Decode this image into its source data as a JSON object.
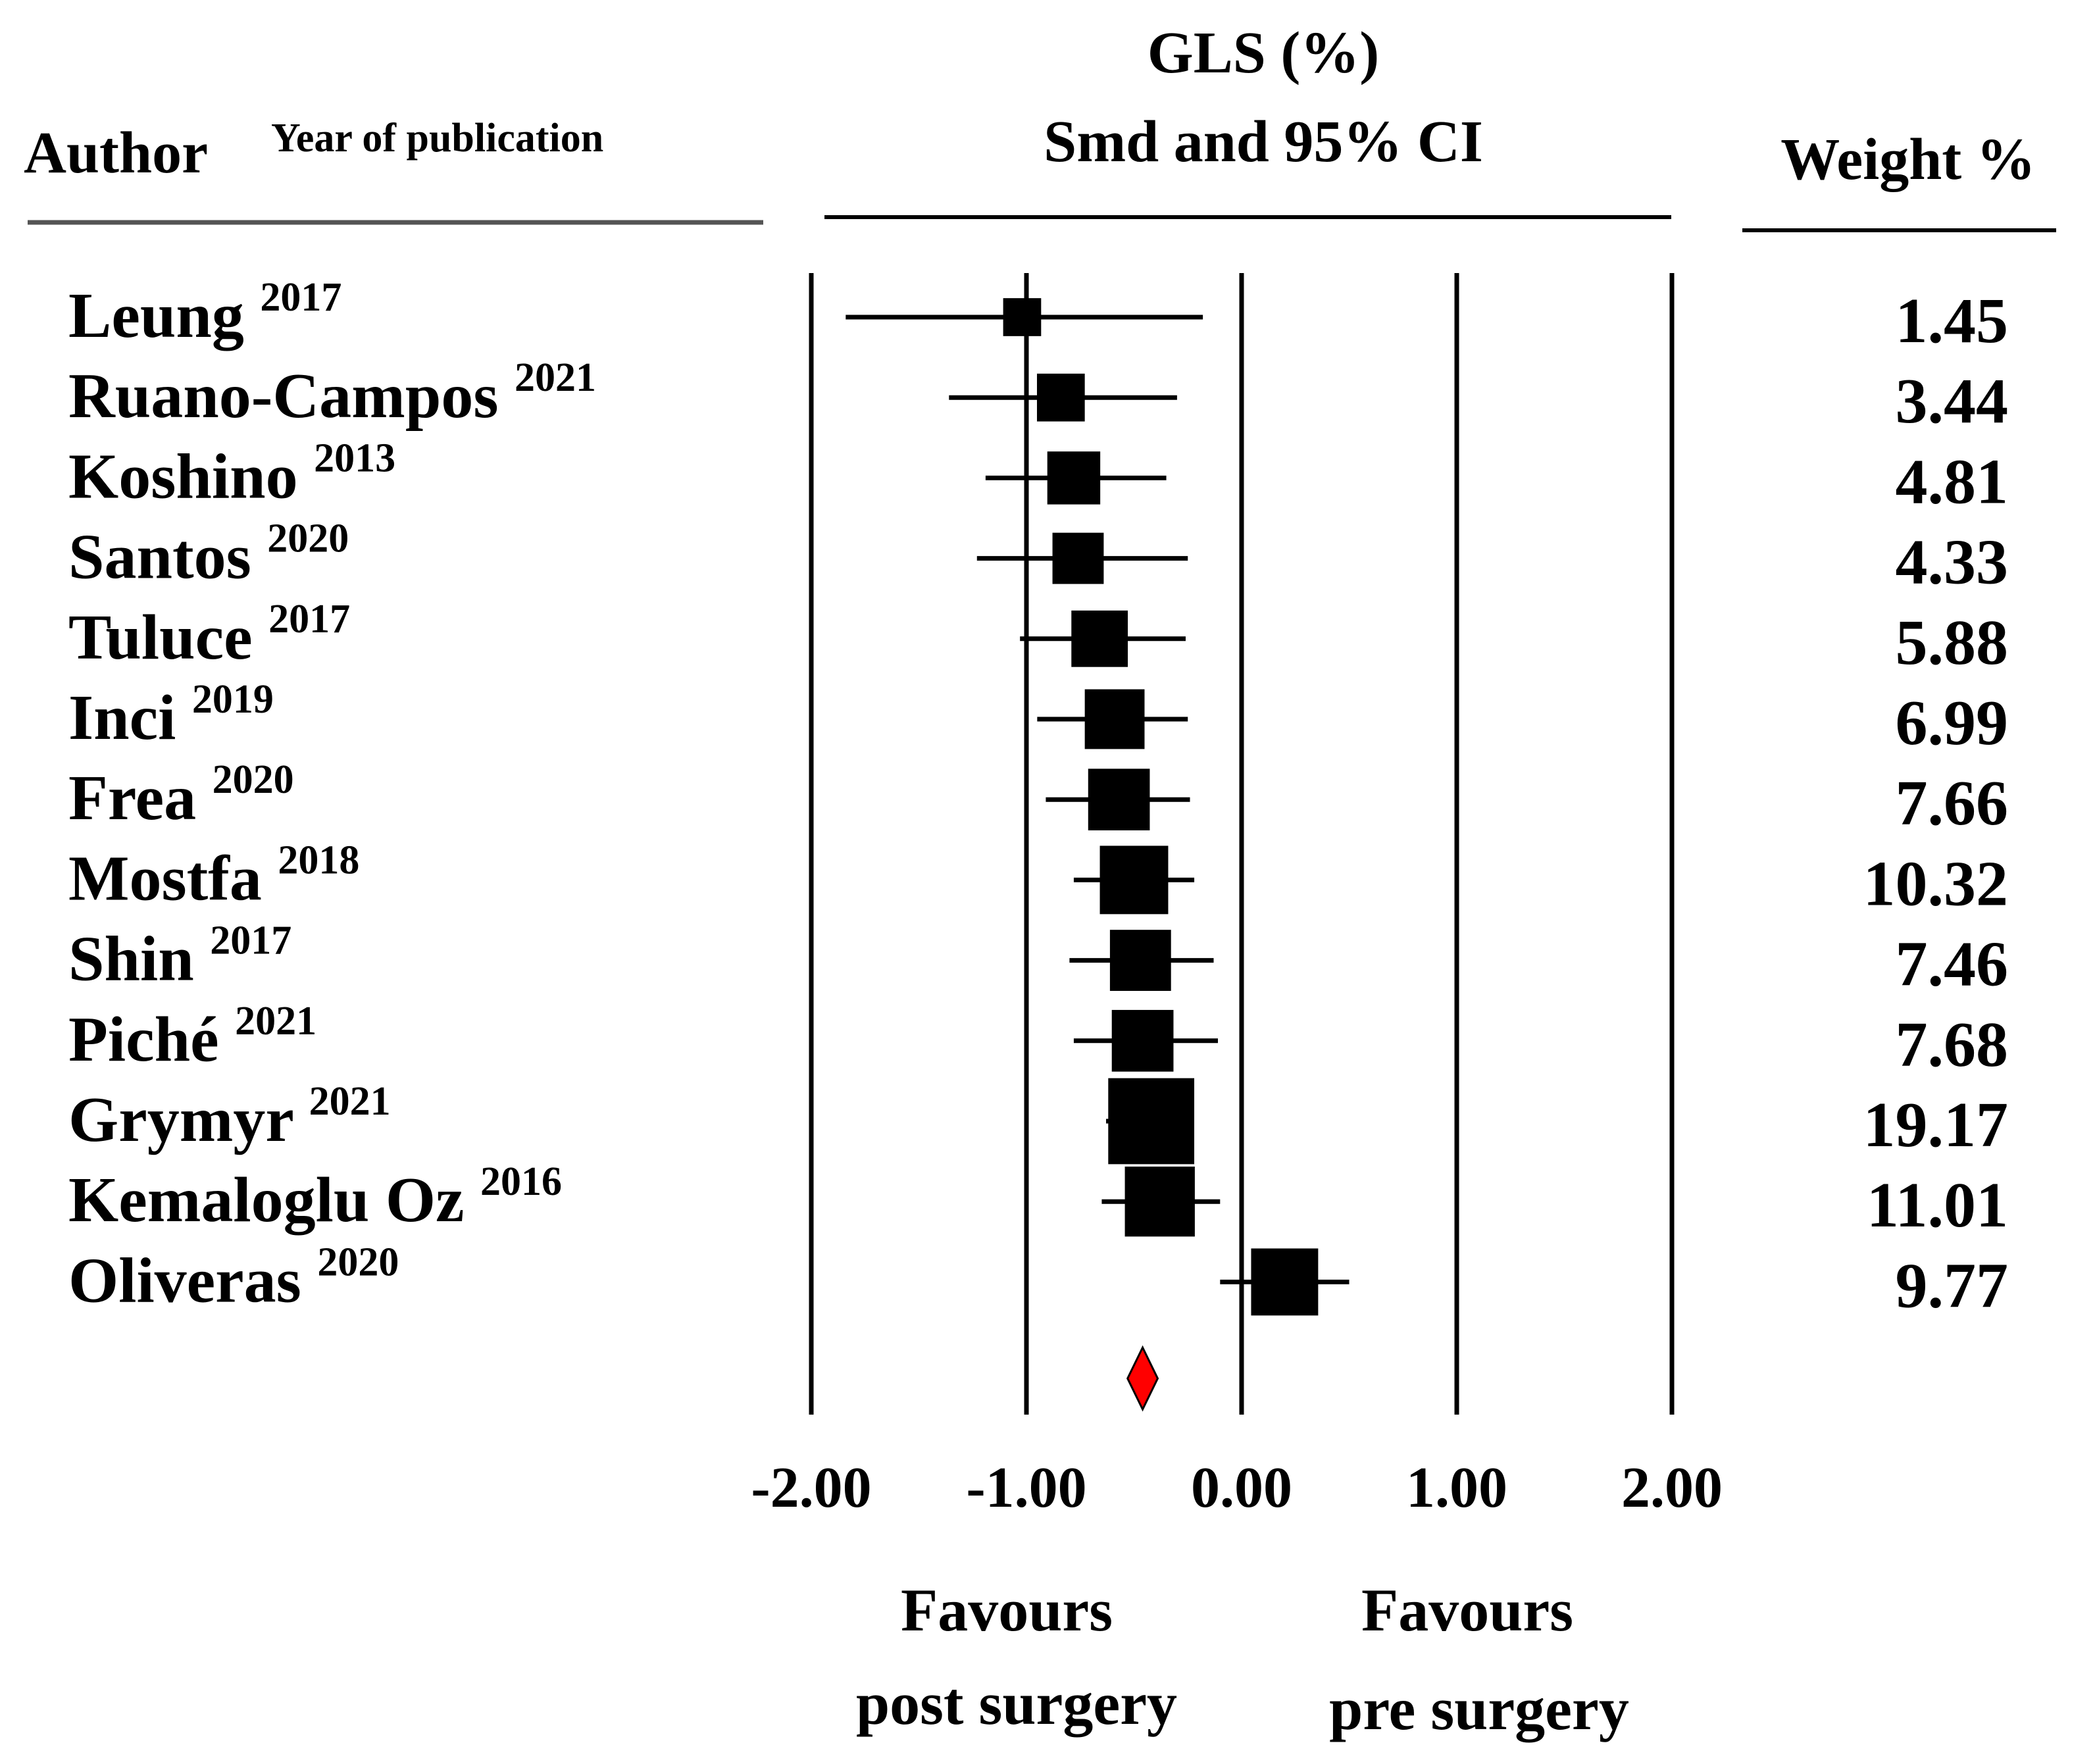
{
  "chart_data": {
    "type": "forest",
    "title": "GLS (%)",
    "subtitle": "Smd and 95% CI",
    "author_header": "Author",
    "year_header": "Year of publication",
    "weight_header": "Weight %",
    "xlim": [
      -2.0,
      2.0
    ],
    "ticks": [
      -2.0,
      -1.0,
      0.0,
      1.0,
      2.0
    ],
    "tick_labels": [
      "-2.00",
      "-1.00",
      "0.00",
      "1.00",
      "2.00"
    ],
    "favours_left": [
      "Favours",
      "post surgery"
    ],
    "favours_right": [
      "Favours",
      "pre surgery"
    ],
    "studies": [
      {
        "author": "Leung",
        "year": "2017",
        "smd": -1.02,
        "lower": -1.84,
        "upper": -0.18,
        "weight": "1.45"
      },
      {
        "author": "Ruano-Campos",
        "year": "2021",
        "smd": -0.84,
        "lower": -1.36,
        "upper": -0.3,
        "weight": "3.44"
      },
      {
        "author": "Koshino",
        "year": "2013",
        "smd": -0.78,
        "lower": -1.19,
        "upper": -0.35,
        "weight": "4.81"
      },
      {
        "author": "Santos",
        "year": "2020",
        "smd": -0.76,
        "lower": -1.23,
        "upper": -0.25,
        "weight": "4.33"
      },
      {
        "author": "Tuluce",
        "year": "2017",
        "smd": -0.66,
        "lower": -1.03,
        "upper": -0.26,
        "weight": "5.88"
      },
      {
        "author": "Inci",
        "year": "2019",
        "smd": -0.59,
        "lower": -0.95,
        "upper": -0.25,
        "weight": "6.99"
      },
      {
        "author": "Frea",
        "year": "2020",
        "smd": -0.57,
        "lower": -0.91,
        "upper": -0.24,
        "weight": "7.66"
      },
      {
        "author": "Mostfa",
        "year": "2018",
        "smd": -0.5,
        "lower": -0.78,
        "upper": -0.22,
        "weight": "10.32"
      },
      {
        "author": "Shin",
        "year": "2017",
        "smd": -0.47,
        "lower": -0.8,
        "upper": -0.13,
        "weight": "7.46"
      },
      {
        "author": "Piché",
        "year": "2021",
        "smd": -0.46,
        "lower": -0.78,
        "upper": -0.11,
        "weight": "7.68"
      },
      {
        "author": "Grymyr",
        "year": "2021",
        "smd": -0.42,
        "lower": -0.63,
        "upper": -0.23,
        "weight": "19.17"
      },
      {
        "author": "Kemaloglu Oz",
        "year": "2016",
        "smd": -0.38,
        "lower": -0.65,
        "upper": -0.1,
        "weight": "11.01"
      },
      {
        "author": "Oliveras",
        "year": "2020",
        "smd": 0.2,
        "lower": -0.1,
        "upper": 0.5,
        "weight": "9.77"
      }
    ],
    "pooled": {
      "smd": -0.46,
      "lower": -0.53,
      "upper": -0.39,
      "color": "#ff0000"
    }
  }
}
